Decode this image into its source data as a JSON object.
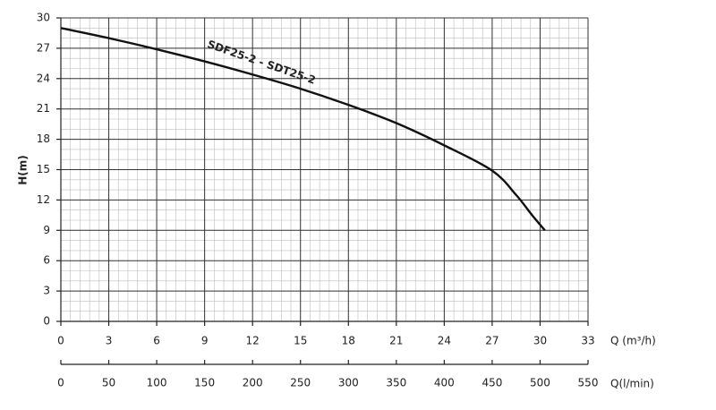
{
  "chart_data": {
    "type": "line",
    "x": [
      0,
      3,
      6,
      9,
      12,
      15,
      18,
      21,
      24,
      27,
      28.5,
      29.5,
      30.3
    ],
    "series": [
      {
        "name": "SDF25-2 - SDT25-2",
        "color": "#111111",
        "values": [
          29,
          28.0,
          26.9,
          25.7,
          24.4,
          23.0,
          21.4,
          19.6,
          17.4,
          14.9,
          12.5,
          10.5,
          9.0
        ]
      }
    ],
    "xlabel": "Q (m³/h)",
    "ylabel": "H(m)",
    "x2label": "Q(l/min)",
    "xlim": [
      0,
      33
    ],
    "xticks": [
      0,
      3,
      6,
      9,
      12,
      15,
      18,
      21,
      24,
      27,
      30,
      33
    ],
    "ylim": [
      0,
      30
    ],
    "yticks": [
      0,
      3,
      6,
      9,
      12,
      15,
      18,
      21,
      24,
      27,
      30
    ],
    "x2lim": [
      0,
      550
    ],
    "x2ticks": [
      0,
      50,
      100,
      150,
      200,
      250,
      300,
      350,
      400,
      450,
      500,
      550
    ],
    "x_minor_step": 0.6,
    "y_minor_step": 1,
    "grid": true
  }
}
